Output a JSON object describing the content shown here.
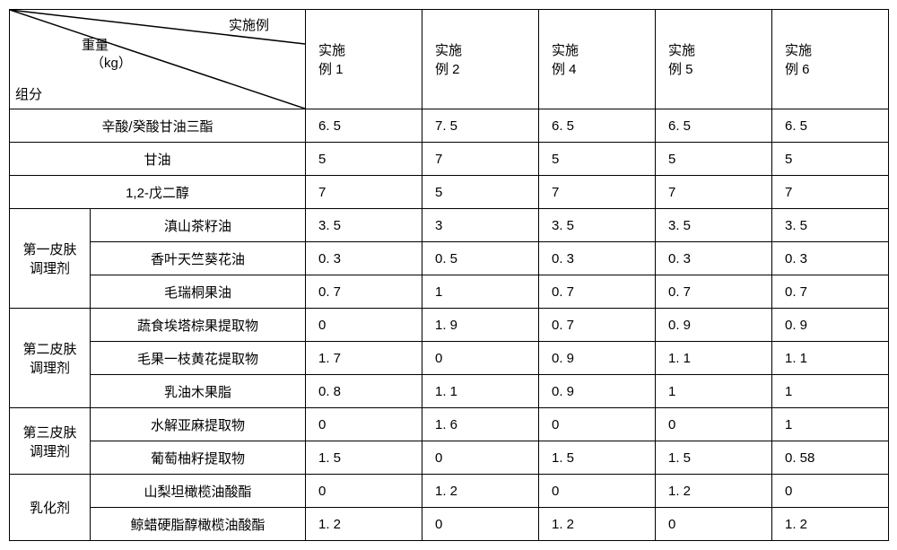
{
  "header": {
    "diag_top": "实施例",
    "diag_mid_l1": "重量",
    "diag_mid_l2": "（kg）",
    "diag_bottom": "组分",
    "cols": [
      "实施<br>例 1",
      "实施<br>例 2",
      "实施<br>例 4",
      "实施<br>例 5",
      "实施<br>例 6"
    ]
  },
  "rows": [
    {
      "group": null,
      "name": "辛酸/癸酸甘油三酯",
      "values": [
        "6. 5",
        "7. 5",
        "6. 5",
        "6. 5",
        "6. 5"
      ]
    },
    {
      "group": null,
      "name": "甘油",
      "values": [
        "5",
        "7",
        "5",
        "5",
        "5"
      ]
    },
    {
      "group": null,
      "name": "1,2-戊二醇",
      "values": [
        "7",
        "5",
        "7",
        "7",
        "7"
      ]
    },
    {
      "group": "第一皮肤<br>调理剂",
      "rowspan": 3,
      "name": "滇山茶籽油",
      "values": [
        "3. 5",
        "3",
        "3. 5",
        "3. 5",
        "3. 5"
      ]
    },
    {
      "group": "cont",
      "name": "香叶天竺葵花油",
      "values": [
        "0. 3",
        "0. 5",
        "0. 3",
        "0. 3",
        "0. 3"
      ]
    },
    {
      "group": "cont",
      "name": "毛瑞桐果油",
      "values": [
        "0. 7",
        "1",
        "0. 7",
        "0. 7",
        "0. 7"
      ]
    },
    {
      "group": "第二皮肤<br>调理剂",
      "rowspan": 3,
      "name": "蔬食埃塔棕果提取物",
      "values": [
        "0",
        "1. 9",
        "0. 7",
        "0. 9",
        "0. 9"
      ]
    },
    {
      "group": "cont",
      "name": "毛果一枝黄花提取物",
      "values": [
        "1. 7",
        "0",
        "0. 9",
        "1. 1",
        "1. 1"
      ]
    },
    {
      "group": "cont",
      "name": "乳油木果脂",
      "values": [
        "0. 8",
        "1. 1",
        "0. 9",
        "1",
        "1"
      ]
    },
    {
      "group": "第三皮肤<br>调理剂",
      "rowspan": 2,
      "name": "水解亚麻提取物",
      "values": [
        "0",
        "1. 6",
        "0",
        "0",
        "1"
      ]
    },
    {
      "group": "cont",
      "name": "葡萄柚籽提取物",
      "values": [
        "1. 5",
        "0",
        "1. 5",
        "1. 5",
        "0. 58"
      ]
    },
    {
      "group": "乳化剂",
      "rowspan": 2,
      "name": "山梨坦橄榄油酸酯",
      "values": [
        "0",
        "1. 2",
        "0",
        "1. 2",
        "0"
      ]
    },
    {
      "group": "cont",
      "name": "鲸蜡硬脂醇橄榄油酸酯",
      "values": [
        "1. 2",
        "0",
        "1. 2",
        "0",
        "1. 2"
      ]
    }
  ],
  "col_widths": {
    "group": 90,
    "name": 240,
    "value": 130
  }
}
